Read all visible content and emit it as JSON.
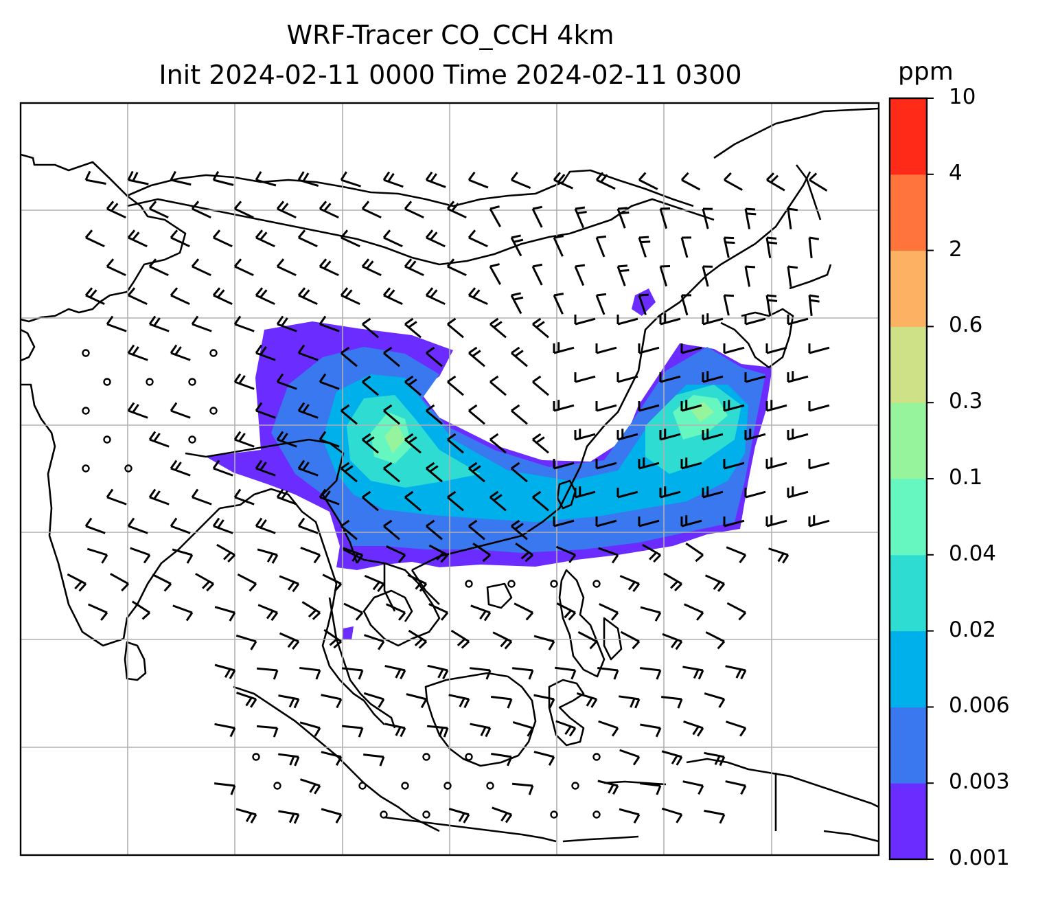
{
  "title": {
    "line1": "WRF-Tracer CO_CCH 4km",
    "line2": "Init 2024-02-11 0000 Time 2024-02-11 0300"
  },
  "colorbar": {
    "unit": "ppm",
    "levels": [
      "0.001",
      "0.003",
      "0.006",
      "0.02",
      "0.04",
      "0.1",
      "0.3",
      "0.6",
      "2",
      "4",
      "10"
    ],
    "colors": [
      "#6a2cff",
      "#3a78f0",
      "#00b0ea",
      "#2edcd2",
      "#66f6bf",
      "#96f49d",
      "#cfe186",
      "#fcb262",
      "#ff733c",
      "#ff2a18"
    ]
  },
  "map": {
    "graticule": "grid-lines",
    "wind_barbs": "wind-barb-field",
    "tracer_plume": "co-concentration-plume"
  }
}
